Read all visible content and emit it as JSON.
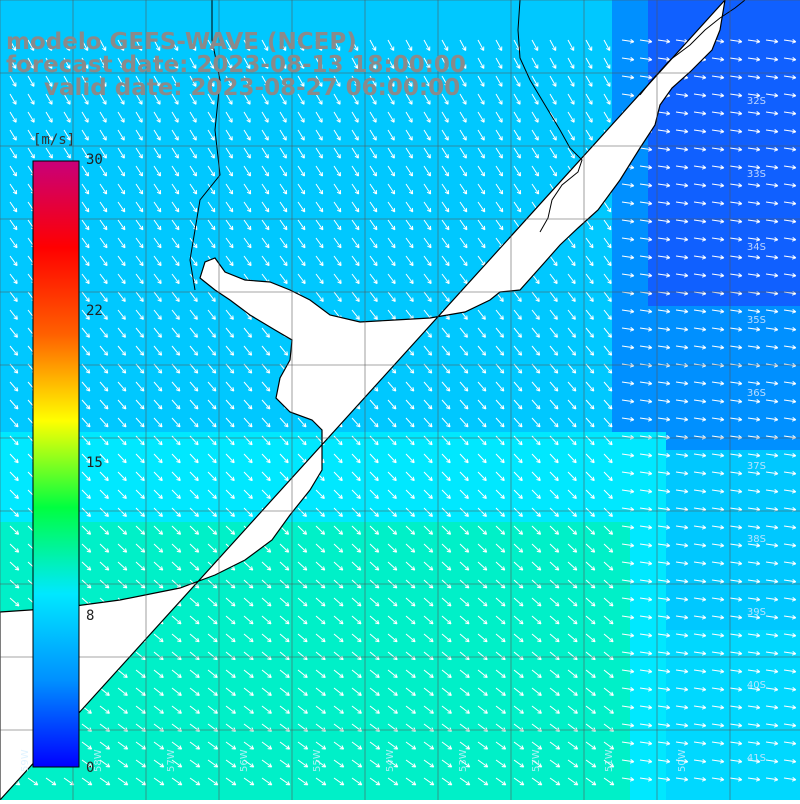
{
  "title": {
    "line1": "modelo GEFS-WAVE (NCEP)",
    "line2": "forecast date: 2023-08-13 18:00:00",
    "line3": "valid date: 2023-08-27 06:00:00"
  },
  "colorbar": {
    "units": "[m/s]",
    "ticks": [
      {
        "label": "30",
        "value": 30
      },
      {
        "label": "22",
        "value": 22
      },
      {
        "label": "15",
        "value": 15
      },
      {
        "label": "8",
        "value": 8
      },
      {
        "label": "0",
        "value": 0
      }
    ],
    "colors": [
      "#0000ff",
      "#0090ff",
      "#00e8ff",
      "#00ff40",
      "#ffff00",
      "#ff6000",
      "#ff0000",
      "#c8007a"
    ]
  },
  "latitude_labels": [
    "32S",
    "33S",
    "34S",
    "35S",
    "36S",
    "37S",
    "38S",
    "39S",
    "40S",
    "41S"
  ],
  "longitude_labels": [
    "59W",
    "58W",
    "57W",
    "56W",
    "55W",
    "54W",
    "53W",
    "52W",
    "51W",
    "50W"
  ],
  "land_color": "#ffffff",
  "grid_color": "#555555",
  "arrow_color": "#ffffff"
}
